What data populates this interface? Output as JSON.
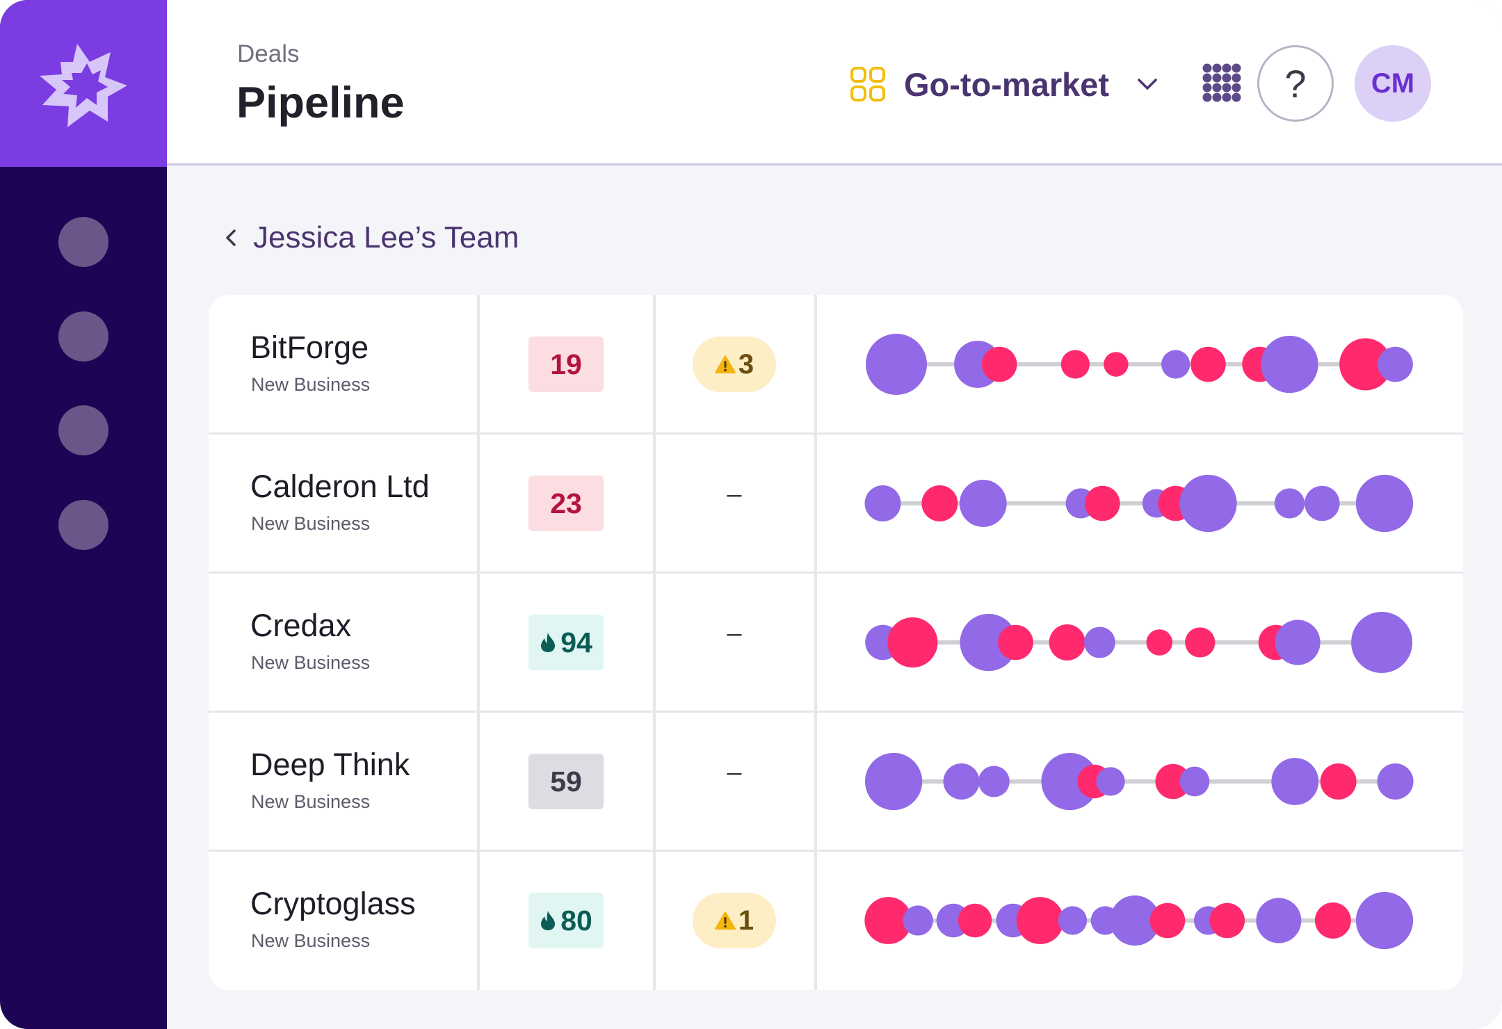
{
  "header": {
    "breadcrumb": "Deals",
    "title": "Pipeline",
    "workspace_label": "Go-to-market",
    "help_label": "?",
    "avatar_initials": "CM"
  },
  "team": {
    "label": "Jessica Lee’s Team"
  },
  "colors": {
    "purple": "#9269e6",
    "pink": "#ff2a6e",
    "line": "#cfcfd4",
    "accent": "#7b3ce2",
    "sidebar": "#1e0454"
  },
  "deals": [
    {
      "name": "BitForge",
      "type": "New Business",
      "score": "19",
      "score_status": "bad",
      "alerts": "3",
      "activity": [
        {
          "pos": 0.05,
          "size": 1.0,
          "kind": "purple"
        },
        {
          "pos": 0.2,
          "size": 0.72,
          "kind": "purple"
        },
        {
          "pos": 0.24,
          "size": 0.48,
          "kind": "pink"
        },
        {
          "pos": 0.38,
          "size": 0.35,
          "kind": "pink"
        },
        {
          "pos": 0.455,
          "size": 0.27,
          "kind": "pink"
        },
        {
          "pos": 0.565,
          "size": 0.35,
          "kind": "purple"
        },
        {
          "pos": 0.625,
          "size": 0.48,
          "kind": "pink"
        },
        {
          "pos": 0.72,
          "size": 0.48,
          "kind": "pink"
        },
        {
          "pos": 0.775,
          "size": 0.92,
          "kind": "purple"
        },
        {
          "pos": 0.915,
          "size": 0.82,
          "kind": "pink"
        },
        {
          "pos": 0.97,
          "size": 0.48,
          "kind": "purple"
        }
      ]
    },
    {
      "name": "Calderon Ltd",
      "type": "New Business",
      "score": "23",
      "score_status": "bad",
      "alerts": "",
      "activity": [
        {
          "pos": 0.025,
          "size": 0.5,
          "kind": "purple"
        },
        {
          "pos": 0.13,
          "size": 0.5,
          "kind": "pink"
        },
        {
          "pos": 0.21,
          "size": 0.72,
          "kind": "purple"
        },
        {
          "pos": 0.39,
          "size": 0.38,
          "kind": "purple"
        },
        {
          "pos": 0.43,
          "size": 0.48,
          "kind": "pink"
        },
        {
          "pos": 0.53,
          "size": 0.35,
          "kind": "purple"
        },
        {
          "pos": 0.565,
          "size": 0.48,
          "kind": "pink"
        },
        {
          "pos": 0.625,
          "size": 0.92,
          "kind": "purple"
        },
        {
          "pos": 0.775,
          "size": 0.38,
          "kind": "purple"
        },
        {
          "pos": 0.835,
          "size": 0.48,
          "kind": "purple"
        },
        {
          "pos": 0.95,
          "size": 0.92,
          "kind": "purple"
        }
      ]
    },
    {
      "name": "Credax",
      "type": "New Business",
      "score": "94",
      "score_status": "good",
      "alerts": "",
      "activity": [
        {
          "pos": 0.025,
          "size": 0.48,
          "kind": "purple"
        },
        {
          "pos": 0.08,
          "size": 0.78,
          "kind": "pink"
        },
        {
          "pos": 0.22,
          "size": 0.92,
          "kind": "purple"
        },
        {
          "pos": 0.27,
          "size": 0.48,
          "kind": "pink"
        },
        {
          "pos": 0.365,
          "size": 0.5,
          "kind": "pink"
        },
        {
          "pos": 0.425,
          "size": 0.4,
          "kind": "purple"
        },
        {
          "pos": 0.535,
          "size": 0.3,
          "kind": "pink"
        },
        {
          "pos": 0.61,
          "size": 0.38,
          "kind": "pink"
        },
        {
          "pos": 0.75,
          "size": 0.48,
          "kind": "pink"
        },
        {
          "pos": 0.79,
          "size": 0.68,
          "kind": "purple"
        },
        {
          "pos": 0.945,
          "size": 1.0,
          "kind": "purple"
        }
      ]
    },
    {
      "name": "Deep Think",
      "type": "New Business",
      "score": "59",
      "score_status": "neutral",
      "alerts": "",
      "activity": [
        {
          "pos": 0.045,
          "size": 0.92,
          "kind": "purple"
        },
        {
          "pos": 0.17,
          "size": 0.5,
          "kind": "purple"
        },
        {
          "pos": 0.23,
          "size": 0.4,
          "kind": "purple"
        },
        {
          "pos": 0.37,
          "size": 0.92,
          "kind": "purple"
        },
        {
          "pos": 0.415,
          "size": 0.45,
          "kind": "pink"
        },
        {
          "pos": 0.445,
          "size": 0.35,
          "kind": "purple"
        },
        {
          "pos": 0.56,
          "size": 0.48,
          "kind": "pink"
        },
        {
          "pos": 0.6,
          "size": 0.37,
          "kind": "purple"
        },
        {
          "pos": 0.785,
          "size": 0.72,
          "kind": "purple"
        },
        {
          "pos": 0.865,
          "size": 0.5,
          "kind": "pink"
        },
        {
          "pos": 0.97,
          "size": 0.5,
          "kind": "purple"
        }
      ]
    },
    {
      "name": "Cryptoglass",
      "type": "New Business",
      "score": "80",
      "score_status": "good",
      "alerts": "1",
      "activity": [
        {
          "pos": 0.035,
          "size": 0.72,
          "kind": "pink"
        },
        {
          "pos": 0.09,
          "size": 0.38,
          "kind": "purple"
        },
        {
          "pos": 0.155,
          "size": 0.45,
          "kind": "purple"
        },
        {
          "pos": 0.195,
          "size": 0.45,
          "kind": "pink"
        },
        {
          "pos": 0.265,
          "size": 0.45,
          "kind": "purple"
        },
        {
          "pos": 0.315,
          "size": 0.72,
          "kind": "pink"
        },
        {
          "pos": 0.375,
          "size": 0.35,
          "kind": "purple"
        },
        {
          "pos": 0.435,
          "size": 0.35,
          "kind": "purple"
        },
        {
          "pos": 0.49,
          "size": 0.78,
          "kind": "purple"
        },
        {
          "pos": 0.55,
          "size": 0.48,
          "kind": "pink"
        },
        {
          "pos": 0.625,
          "size": 0.35,
          "kind": "purple"
        },
        {
          "pos": 0.66,
          "size": 0.48,
          "kind": "pink"
        },
        {
          "pos": 0.755,
          "size": 0.68,
          "kind": "purple"
        },
        {
          "pos": 0.855,
          "size": 0.5,
          "kind": "pink"
        },
        {
          "pos": 0.95,
          "size": 0.92,
          "kind": "purple"
        }
      ]
    }
  ]
}
